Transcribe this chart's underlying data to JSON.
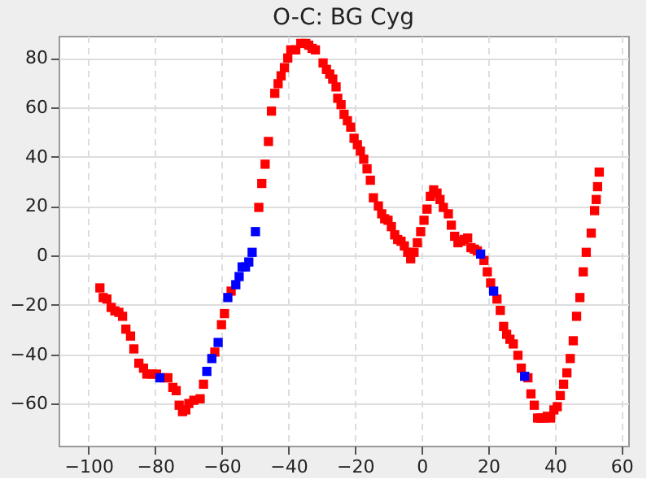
{
  "chart_data": {
    "type": "scatter",
    "title": "O-C: BG Cyg",
    "marker": "square",
    "grid": true,
    "xlim": [
      -109,
      62
    ],
    "ylim": [
      -77,
      89
    ],
    "xticks": [
      -100,
      -80,
      -60,
      -40,
      -20,
      0,
      20,
      40,
      60
    ],
    "yticks": [
      -60,
      -40,
      -20,
      0,
      20,
      40,
      60,
      80
    ],
    "series": [
      {
        "color": "#ff0000",
        "x": [
          -96.6,
          -95.6,
          -94.5,
          -93.2,
          -92.1,
          -90.9,
          -89.8,
          -88.8,
          -87.4,
          -86.4,
          -84.9,
          -83.5,
          -82.5,
          -81,
          -79.6,
          -77.1,
          -76.2,
          -74.7,
          -73.7,
          -72.8,
          -71.8,
          -70.8,
          -69.9,
          -68.4,
          -66.5,
          -65.5,
          -62.1,
          -60.1,
          -59.2,
          -57.2,
          -48.9,
          -48,
          -47,
          -46,
          -45.1,
          -44.1,
          -43.1,
          -42.2,
          -41.2,
          -40.2,
          -39.3,
          -37.8,
          -36.3,
          -34.8,
          -33.9,
          -32.9,
          -31.9,
          -29.6,
          -28.6,
          -27.6,
          -26.7,
          -25.7,
          -25.2,
          -24.2,
          -23.3,
          -22.3,
          -21.3,
          -20.3,
          -19.3,
          -18.4,
          -17.4,
          -16.4,
          -15.4,
          -14.5,
          -13,
          -12,
          -11.1,
          -10.1,
          -9.1,
          -8.1,
          -7.2,
          -6.2,
          -5.2,
          -4.2,
          -3.3,
          -2.3,
          -1.3,
          -0.3,
          0.7,
          1.6,
          2.6,
          3.6,
          4.6,
          5.5,
          6.5,
          8,
          8.9,
          9.9,
          10.9,
          11.9,
          12.8,
          13.8,
          14.8,
          15.8,
          16.7,
          18.7,
          19.7,
          20.7,
          22.6,
          23.6,
          24.6,
          25.5,
          26.5,
          27.5,
          28.9,
          29.9,
          31.9,
          32.8,
          33.8,
          34.8,
          35.8,
          36.7,
          37.7,
          38.7,
          39.7,
          40.7,
          41.6,
          42.6,
          43.6,
          44.6,
          45.5,
          46.5,
          47.5,
          48.5,
          49.4,
          50.9,
          51.9,
          52.4,
          52.8,
          53.3
        ],
        "values": [
          -13.1,
          -17,
          -17.6,
          -21,
          -22.4,
          -23,
          -24.6,
          -29.8,
          -32.6,
          -37.8,
          -43.6,
          -45.6,
          -48,
          -48,
          -48,
          -49.5,
          -49.5,
          -53.4,
          -54.7,
          -60.6,
          -63.2,
          -62.5,
          -59.9,
          -58.6,
          -58,
          -52.1,
          -39.1,
          -28,
          -23.5,
          -14.4,
          19.5,
          29.2,
          37,
          46.2,
          58.5,
          65.7,
          69.6,
          72.8,
          76.1,
          80,
          83.3,
          83.3,
          85.9,
          85.9,
          85.2,
          83.9,
          83.3,
          78,
          75.4,
          73.5,
          71.5,
          68.3,
          63.7,
          61.1,
          57.2,
          54.6,
          52,
          47.5,
          44.9,
          42.3,
          39,
          35.1,
          30.5,
          23.4,
          20.1,
          16.9,
          14.9,
          14.3,
          11.7,
          8.4,
          6.5,
          5.8,
          3.9,
          1.3,
          -1.3,
          1.3,
          5.2,
          9.7,
          14.3,
          18.8,
          24,
          26.6,
          25.3,
          22.7,
          19.5,
          16.9,
          12.3,
          7.8,
          5.2,
          5.8,
          6.5,
          7.1,
          3.2,
          2.6,
          1.9,
          -2,
          -6.6,
          -11.1,
          -17.6,
          -22.2,
          -28.7,
          -31.9,
          -33.9,
          -35.8,
          -40.4,
          -45.6,
          -49.5,
          -56,
          -60.6,
          -65.8,
          -65.8,
          -65.8,
          -65.1,
          -65.8,
          -62.5,
          -61.2,
          -56.7,
          -52.1,
          -47.5,
          -41.7,
          -34.5,
          -24.6,
          -17,
          -6.6,
          1.3,
          9.1,
          18.2,
          22.7,
          27.9,
          33.8
        ]
      },
      {
        "color": "#0000ff",
        "x": [
          -78.6,
          -64.5,
          -63,
          -61.1,
          -58.2,
          -55.8,
          -54.8,
          -53.9,
          -52.9,
          -51.9,
          -50.9,
          -49.9,
          17.7,
          21.6,
          30.9
        ],
        "values": [
          -49.5,
          -46.9,
          -41.7,
          -35.2,
          -17,
          -11.8,
          -8.5,
          -4.6,
          -4.6,
          -2.6,
          1.3,
          9.7,
          0.6,
          -14.4,
          -48.9
        ]
      }
    ]
  }
}
